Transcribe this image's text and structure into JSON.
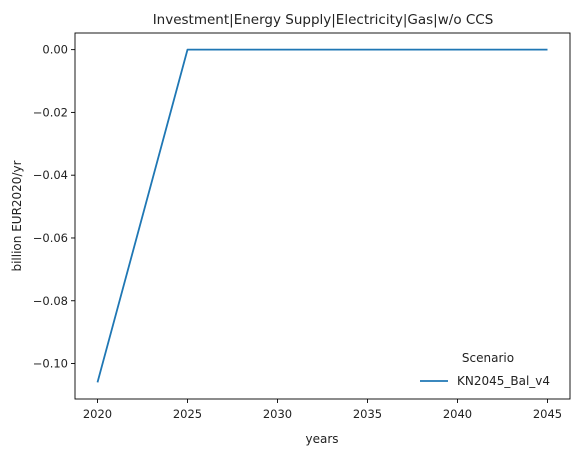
{
  "chart_data": {
    "type": "line",
    "title": "Investment|Energy Supply|Electricity|Gas|w/o CCS",
    "xlabel": "years",
    "ylabel": "billion EUR2020/yr",
    "x": [
      2020,
      2025,
      2030,
      2035,
      2040,
      2045
    ],
    "series": [
      {
        "name": "KN2045_Bal_v4",
        "color": "#1f77b4",
        "values": [
          -0.106,
          0.0,
          0.0,
          0.0,
          0.0,
          0.0
        ]
      }
    ],
    "xlim": [
      2018.75,
      2046.25
    ],
    "ylim": [
      -0.1113,
      0.0053
    ],
    "xticks": [
      2020,
      2025,
      2030,
      2035,
      2040,
      2045
    ],
    "xtick_labels": [
      "2020",
      "2025",
      "2030",
      "2035",
      "2040",
      "2045"
    ],
    "yticks": [
      0.0,
      -0.02,
      -0.04,
      -0.06,
      -0.08,
      -0.1
    ],
    "ytick_labels": [
      "0.00",
      "−0.02",
      "−0.04",
      "−0.06",
      "−0.08",
      "−0.10"
    ],
    "grid": false,
    "legend": {
      "title": "Scenario",
      "placement": "lower-right"
    }
  }
}
